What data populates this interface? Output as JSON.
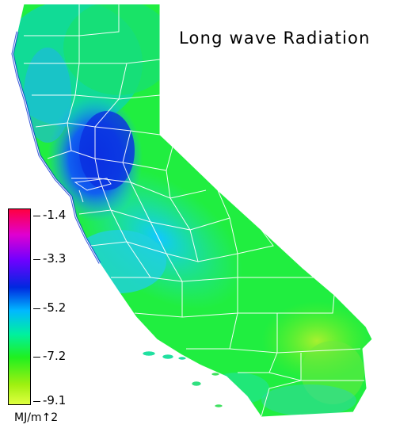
{
  "map": {
    "title": "Long wave Radiation",
    "region_names": [],
    "colors": {
      "background": "#ffffff",
      "borders": "#ffffff",
      "scale": [
        "#ff0040",
        "#e000d0",
        "#7000ff",
        "#0028e0",
        "#00b8ff",
        "#00f0a0",
        "#20f020",
        "#a0f010",
        "#e0ff40"
      ]
    }
  },
  "legend": {
    "ticks": [
      "-1.4",
      "-3.3",
      "-5.2",
      "-7.2",
      "-9.1"
    ],
    "units": "MJ/m↑2"
  }
}
